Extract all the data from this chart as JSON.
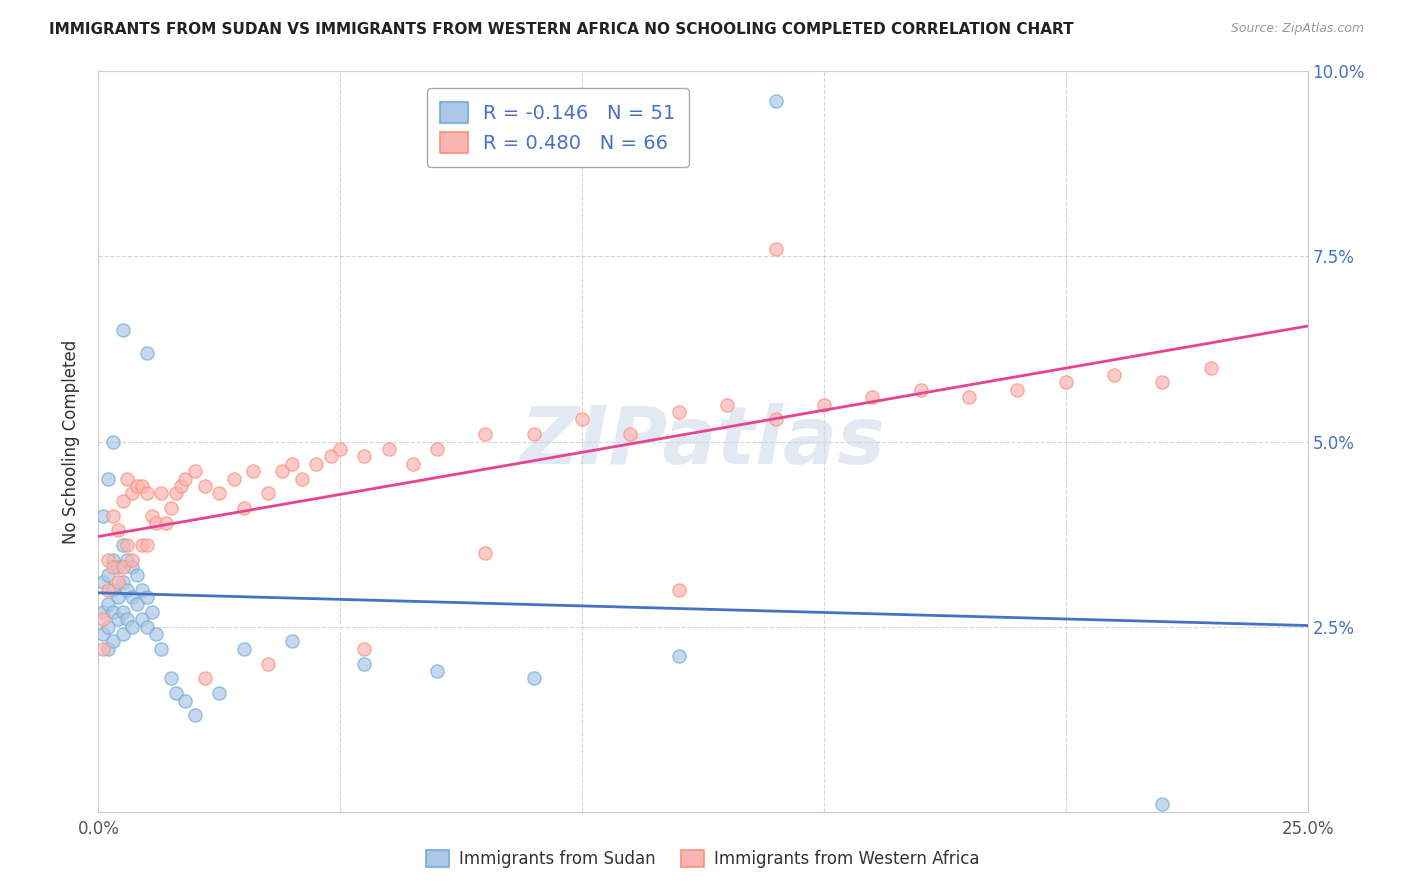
{
  "title": "IMMIGRANTS FROM SUDAN VS IMMIGRANTS FROM WESTERN AFRICA NO SCHOOLING COMPLETED CORRELATION CHART",
  "source": "Source: ZipAtlas.com",
  "ylabel": "No Schooling Completed",
  "xlim": [
    0.0,
    0.25
  ],
  "ylim": [
    0.0,
    0.1
  ],
  "xtick_positions": [
    0.0,
    0.05,
    0.1,
    0.15,
    0.2,
    0.25
  ],
  "xticklabels": [
    "0.0%",
    "",
    "",
    "",
    "",
    "25.0%"
  ],
  "ytick_positions": [
    0.0,
    0.025,
    0.05,
    0.075,
    0.1
  ],
  "yticklabels": [
    "",
    "2.5%",
    "5.0%",
    "7.5%",
    "10.0%"
  ],
  "sudan_color": "#6baed6",
  "sudan_face_color": "#aec6e8",
  "western_africa_color": "#fc9272",
  "western_africa_face_color": "#fbb4b4",
  "line_sudan_color": "#4472c4",
  "line_wa_color": "#e84393",
  "sudan_R": -0.146,
  "sudan_N": 51,
  "western_africa_R": 0.48,
  "western_africa_N": 66,
  "legend_label_sudan": "Immigrants from Sudan",
  "legend_label_wa": "Immigrants from Western Africa",
  "watermark": "ZIPatlas",
  "sudan_x": [
    0.001,
    0.001,
    0.001,
    0.002,
    0.002,
    0.002,
    0.002,
    0.003,
    0.003,
    0.003,
    0.003,
    0.004,
    0.004,
    0.004,
    0.005,
    0.005,
    0.005,
    0.005,
    0.006,
    0.006,
    0.006,
    0.007,
    0.007,
    0.007,
    0.008,
    0.008,
    0.009,
    0.009,
    0.01,
    0.01,
    0.011,
    0.012,
    0.013,
    0.015,
    0.016,
    0.018,
    0.02,
    0.025,
    0.03,
    0.04,
    0.055,
    0.07,
    0.09,
    0.12,
    0.01,
    0.005,
    0.003,
    0.002,
    0.001,
    0.14,
    0.22
  ],
  "sudan_y": [
    0.031,
    0.027,
    0.024,
    0.032,
    0.028,
    0.025,
    0.022,
    0.034,
    0.03,
    0.027,
    0.023,
    0.033,
    0.029,
    0.026,
    0.036,
    0.031,
    0.027,
    0.024,
    0.034,
    0.03,
    0.026,
    0.033,
    0.029,
    0.025,
    0.032,
    0.028,
    0.03,
    0.026,
    0.029,
    0.025,
    0.027,
    0.024,
    0.022,
    0.018,
    0.016,
    0.015,
    0.013,
    0.016,
    0.022,
    0.023,
    0.02,
    0.019,
    0.018,
    0.021,
    0.062,
    0.065,
    0.05,
    0.045,
    0.04,
    0.096,
    0.001
  ],
  "wa_x": [
    0.001,
    0.001,
    0.002,
    0.002,
    0.003,
    0.003,
    0.004,
    0.004,
    0.005,
    0.005,
    0.006,
    0.006,
    0.007,
    0.007,
    0.008,
    0.009,
    0.009,
    0.01,
    0.01,
    0.011,
    0.012,
    0.013,
    0.014,
    0.015,
    0.016,
    0.017,
    0.018,
    0.02,
    0.022,
    0.025,
    0.028,
    0.03,
    0.032,
    0.035,
    0.038,
    0.04,
    0.042,
    0.045,
    0.048,
    0.05,
    0.055,
    0.06,
    0.065,
    0.07,
    0.08,
    0.09,
    0.1,
    0.11,
    0.12,
    0.13,
    0.14,
    0.15,
    0.16,
    0.17,
    0.18,
    0.19,
    0.2,
    0.21,
    0.22,
    0.23,
    0.14,
    0.08,
    0.055,
    0.035,
    0.022,
    0.12
  ],
  "wa_y": [
    0.026,
    0.022,
    0.034,
    0.03,
    0.04,
    0.033,
    0.038,
    0.031,
    0.042,
    0.033,
    0.045,
    0.036,
    0.043,
    0.034,
    0.044,
    0.044,
    0.036,
    0.043,
    0.036,
    0.04,
    0.039,
    0.043,
    0.039,
    0.041,
    0.043,
    0.044,
    0.045,
    0.046,
    0.044,
    0.043,
    0.045,
    0.041,
    0.046,
    0.043,
    0.046,
    0.047,
    0.045,
    0.047,
    0.048,
    0.049,
    0.048,
    0.049,
    0.047,
    0.049,
    0.051,
    0.051,
    0.053,
    0.051,
    0.054,
    0.055,
    0.053,
    0.055,
    0.056,
    0.057,
    0.056,
    0.057,
    0.058,
    0.059,
    0.058,
    0.06,
    0.076,
    0.035,
    0.022,
    0.02,
    0.018,
    0.03
  ]
}
